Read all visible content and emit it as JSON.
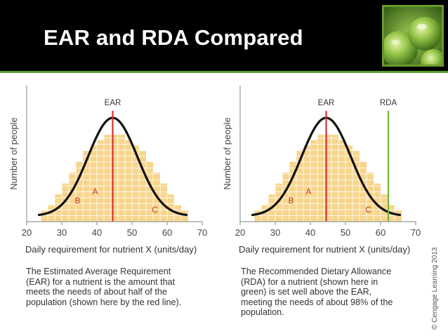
{
  "slide": {
    "title": "EAR and RDA Compared",
    "copyright": "© Cengage Learning 2013"
  },
  "colors": {
    "bar_fill": "#f7d58c",
    "curve": "#111111",
    "ear_line": "#d8312b",
    "rda_line": "#6fb33a",
    "region_label": "#c0392b",
    "header_bg": "#000000",
    "accent": "#5b9a2a"
  },
  "chart_data": [
    {
      "type": "bar",
      "xlabel": "Daily requirement for nutrient X (units/day)",
      "ylabel": "Number of people",
      "xlim": [
        20,
        70
      ],
      "xticks": [
        "20",
        "30",
        "40",
        "50",
        "60",
        "70"
      ],
      "categories": [
        "25",
        "27",
        "29",
        "31",
        "33",
        "35",
        "37",
        "39",
        "41",
        "43",
        "45",
        "47",
        "49",
        "51",
        "53",
        "55",
        "57",
        "59",
        "61",
        "63",
        "65"
      ],
      "values": [
        1,
        2,
        4,
        6,
        8,
        10,
        12,
        13,
        14,
        15,
        15,
        15,
        14,
        13,
        12,
        10,
        8,
        6,
        4,
        2,
        1
      ],
      "ear": {
        "label": "EAR",
        "x": 44.5
      },
      "regions": [
        {
          "label": "B",
          "x": 34.5
        },
        {
          "label": "A",
          "x": 39.5
        },
        {
          "label": "C",
          "x": 56.5
        }
      ],
      "caption": [
        "The Estimated Average Requirement",
        "(EAR) for a nutrient is the amount that",
        "meets the needs of about half of the",
        "population (shown here by the red line)."
      ]
    },
    {
      "type": "bar",
      "xlabel": "Daily requirement for nutrient X (units/day)",
      "ylabel": "Number of people",
      "xlim": [
        20,
        70
      ],
      "xticks": [
        "20",
        "30",
        "40",
        "50",
        "60",
        "70"
      ],
      "categories": [
        "25",
        "27",
        "29",
        "31",
        "33",
        "35",
        "37",
        "39",
        "41",
        "43",
        "45",
        "47",
        "49",
        "51",
        "53",
        "55",
        "57",
        "59",
        "61",
        "63",
        "65"
      ],
      "values": [
        1,
        2,
        4,
        6,
        8,
        10,
        12,
        13,
        14,
        15,
        15,
        15,
        14,
        13,
        12,
        10,
        8,
        6,
        4,
        2,
        1
      ],
      "ear": {
        "label": "EAR",
        "x": 44.5
      },
      "rda": {
        "label": "RDA",
        "x": 62.2
      },
      "regions": [
        {
          "label": "B",
          "x": 34.5
        },
        {
          "label": "A",
          "x": 39.5
        },
        {
          "label": "C",
          "x": 56.5
        }
      ],
      "caption": [
        "The Recommended Dietary Allowance",
        "(RDA) for a nutrient (shown here in",
        "green) is set well above the EAR,",
        "meeting the needs of about 98% of the",
        "population."
      ]
    }
  ]
}
